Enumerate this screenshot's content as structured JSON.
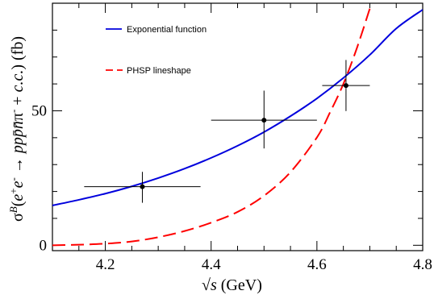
{
  "chart_data": {
    "type": "line",
    "xlabel": "√s  (GeV)",
    "ylabel": "σB(e+e- → ppp̄n̄π- + c.c.) (fb)",
    "xlim": [
      4.1,
      4.8
    ],
    "ylim": [
      -2,
      90
    ],
    "x_ticks": [
      4.2,
      4.4,
      4.6,
      4.8
    ],
    "x_tick_labels": [
      "4.2",
      "4.4",
      "4.6",
      "4.8"
    ],
    "y_ticks": [
      0,
      50
    ],
    "y_tick_labels": [
      "0",
      "50"
    ],
    "legend": {
      "placement": "top-left"
    },
    "series": [
      {
        "name": "Exponential function",
        "kind": "curve",
        "color": "#0000dd",
        "style": "solid",
        "x": [
          4.1,
          4.15,
          4.2,
          4.25,
          4.3,
          4.35,
          4.4,
          4.45,
          4.5,
          4.55,
          4.6,
          4.65,
          4.7,
          4.75,
          4.8
        ],
        "y": [
          14.8,
          16.9,
          19.2,
          21.9,
          25.0,
          28.5,
          32.5,
          37.0,
          42.1,
          48.0,
          54.6,
          62.2,
          70.8,
          80.6,
          87.6
        ]
      },
      {
        "name": "PHSP lineshape",
        "kind": "curve",
        "color": "#ff0000",
        "style": "dashed",
        "x": [
          4.1,
          4.15,
          4.2,
          4.25,
          4.3,
          4.35,
          4.4,
          4.45,
          4.5,
          4.55,
          4.6,
          4.625,
          4.65,
          4.675,
          4.7
        ],
        "y": [
          0.0,
          0.2,
          0.6,
          1.4,
          3.0,
          5.3,
          8.4,
          12.4,
          18.4,
          27.2,
          40.1,
          49.5,
          60.0,
          73.0,
          88.0
        ]
      },
      {
        "name": "",
        "kind": "points",
        "color": "#000000",
        "x": [
          4.27,
          4.5,
          4.655
        ],
        "y": [
          21.8,
          46.5,
          59.4
        ],
        "x_err": [
          [
            0.11,
            0.11
          ],
          [
            0.1,
            0.1
          ],
          [
            0.045,
            0.045
          ]
        ],
        "y_err": [
          [
            6.0,
            5.5
          ],
          [
            10.5,
            11.0
          ],
          [
            9.5,
            9.5
          ]
        ]
      }
    ]
  }
}
